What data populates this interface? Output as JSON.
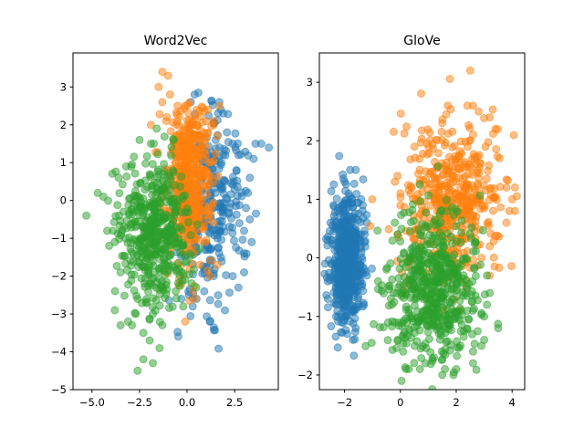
{
  "chart_data": [
    {
      "type": "scatter",
      "title": "Word2Vec",
      "xlabel": "",
      "ylabel": "",
      "xlim": [
        -6.0,
        4.8
      ],
      "ylim": [
        -5.0,
        3.9
      ],
      "xticks": [
        -5.0,
        -2.5,
        0.0,
        2.5
      ],
      "xtick_labels": [
        "−5.0",
        "−2.5",
        "0.0",
        "2.5"
      ],
      "yticks": [
        -5,
        -4,
        -3,
        -2,
        -1,
        0,
        1,
        2,
        3
      ],
      "ytick_labels": [
        "−5",
        "−4",
        "−3",
        "−2",
        "−1",
        "0",
        "1",
        "2",
        "3"
      ],
      "grid": false,
      "legend": "none",
      "series": [
        {
          "color": "#1f77b4",
          "points": [
            [
              4.3,
              1.4
            ],
            [
              3.9,
              1.5
            ],
            [
              3.6,
              1.5
            ],
            [
              3.5,
              1.1
            ],
            [
              3.3,
              0.6
            ],
            [
              3.2,
              0.2
            ],
            [
              3.1,
              -0.2
            ],
            [
              3.3,
              -0.5
            ],
            [
              3.0,
              -0.8
            ],
            [
              3.4,
              -1.1
            ],
            [
              3.0,
              -1.4
            ],
            [
              3.0,
              -1.9
            ],
            [
              2.7,
              -2.3
            ],
            [
              2.4,
              -2.0
            ],
            [
              2.5,
              0.3
            ],
            [
              2.6,
              0.8
            ],
            [
              2.7,
              1.2
            ],
            [
              2.4,
              1.5
            ],
            [
              2.1,
              1.8
            ],
            [
              1.9,
              2.3
            ],
            [
              1.7,
              2.6
            ],
            [
              1.2,
              -3.2
            ],
            [
              1.2,
              -1.6
            ],
            [
              1.6,
              -1.0
            ],
            [
              1.9,
              -0.4
            ],
            [
              2.0,
              0.5
            ],
            [
              1.8,
              1.0
            ],
            [
              1.5,
              1.6
            ],
            [
              0.5,
              -2.6
            ],
            [
              0.1,
              -2.5
            ],
            [
              -0.3,
              -2.6
            ],
            [
              0.9,
              -2.4
            ],
            [
              1.4,
              -2.0
            ],
            [
              0.3,
              -2.8
            ],
            [
              0.4,
              2.8
            ],
            [
              0.2,
              2.6
            ]
          ],
          "clusters": [
            {
              "center": [
                1.0,
                -0.3
              ],
              "sd": [
                0.75,
                1.15
              ],
              "count": 220
            },
            {
              "center": [
                2.1,
                0.1
              ],
              "sd": [
                0.7,
                1.0
              ],
              "count": 60
            }
          ]
        },
        {
          "color": "#ff7f0e",
          "points": [
            [
              -1.3,
              3.4
            ],
            [
              -1.0,
              3.3
            ],
            [
              -1.5,
              3.0
            ],
            [
              -0.9,
              2.8
            ],
            [
              -0.5,
              2.5
            ],
            [
              -1.3,
              2.6
            ],
            [
              -0.1,
              2.5
            ],
            [
              0.5,
              2.4
            ],
            [
              1.1,
              2.4
            ],
            [
              1.7,
              2.5
            ],
            [
              -0.4,
              2.2
            ],
            [
              -1.9,
              2.0
            ],
            [
              -1.1,
              2.1
            ],
            [
              1.4,
              2.1
            ],
            [
              1.6,
              1.7
            ],
            [
              -0.6,
              1.6
            ],
            [
              1.6,
              -1.7
            ],
            [
              1.2,
              -2.0
            ],
            [
              0.3,
              -2.4
            ],
            [
              -0.1,
              -3.2
            ],
            [
              -0.3,
              -2.2
            ],
            [
              1.0,
              1.2
            ],
            [
              -0.6,
              1.2
            ]
          ],
          "clusters": [
            {
              "center": [
                0.1,
                0.35
              ],
              "sd": [
                0.6,
                1.0
              ],
              "count": 420
            },
            {
              "center": [
                0.2,
                1.5
              ],
              "sd": [
                0.55,
                0.5
              ],
              "count": 80
            }
          ]
        },
        {
          "color": "#2ca02c",
          "points": [
            [
              -5.3,
              -0.4
            ],
            [
              -4.7,
              0.2
            ],
            [
              -4.4,
              0.1
            ],
            [
              -4.2,
              -0.8
            ],
            [
              -3.9,
              -0.8
            ],
            [
              -4.1,
              -1.2
            ],
            [
              -3.8,
              -1.1
            ],
            [
              -3.5,
              -1.9
            ],
            [
              -3.8,
              -2.9
            ],
            [
              -3.5,
              -3.3
            ],
            [
              -3.1,
              -3.2
            ],
            [
              -2.9,
              -3.3
            ],
            [
              -2.6,
              -2.6
            ],
            [
              -2.3,
              -3.5
            ],
            [
              -1.8,
              -3.0
            ],
            [
              -1.3,
              -3.3
            ],
            [
              -2.3,
              -4.2
            ],
            [
              -2.6,
              -4.5
            ],
            [
              -1.8,
              -4.3
            ],
            [
              -0.6,
              -2.4
            ],
            [
              -0.3,
              -1.9
            ],
            [
              -0.2,
              -2.8
            ],
            [
              -1.9,
              1.5
            ],
            [
              -2.5,
              1.6
            ],
            [
              -1.6,
              1.9
            ],
            [
              -0.7,
              1.6
            ],
            [
              -3.2,
              0.9
            ],
            [
              -3.6,
              0.6
            ]
          ],
          "clusters": [
            {
              "center": [
                -1.7,
                -0.85
              ],
              "sd": [
                0.9,
                0.95
              ],
              "count": 480
            }
          ]
        }
      ]
    },
    {
      "type": "scatter",
      "title": "GloVe",
      "xlabel": "",
      "ylabel": "",
      "xlim": [
        -2.9,
        4.45
      ],
      "ylim": [
        -2.25,
        3.5
      ],
      "xticks": [
        -2,
        0,
        2,
        4
      ],
      "xtick_labels": [
        "−2",
        "0",
        "2",
        "4"
      ],
      "yticks": [
        -2,
        -1,
        0,
        1,
        2,
        3
      ],
      "ytick_labels": [
        "−2",
        "−1",
        "0",
        "1",
        "2",
        "3"
      ],
      "grid": false,
      "legend": "none",
      "series": [
        {
          "color": "#1f77b4",
          "points": [
            [
              -1.8,
              1.5
            ],
            [
              -1.6,
              1.5
            ],
            [
              -2.0,
              1.3
            ],
            [
              -1.4,
              1.0
            ],
            [
              -2.4,
              0.9
            ],
            [
              -2.5,
              0.6
            ],
            [
              -2.6,
              0.3
            ],
            [
              -2.7,
              -0.1
            ],
            [
              -2.6,
              -0.4
            ],
            [
              -2.6,
              -0.7
            ],
            [
              -1.2,
              0.6
            ],
            [
              -1.2,
              -0.3
            ],
            [
              -1.3,
              -0.8
            ],
            [
              -2.3,
              -1.0
            ],
            [
              -1.6,
              -1.2
            ],
            [
              -1.9,
              -1.3
            ],
            [
              -2.1,
              -1.1
            ],
            [
              -1.7,
              -1.4
            ]
          ],
          "clusters": [
            {
              "center": [
                -1.9,
                0.0
              ],
              "sd": [
                0.28,
                0.55
              ],
              "count": 560
            }
          ]
        },
        {
          "color": "#ff7f0e",
          "points": [
            [
              2.5,
              3.2
            ],
            [
              2.4,
              2.6
            ],
            [
              2.6,
              2.6
            ],
            [
              1.7,
              2.6
            ],
            [
              2.8,
              2.5
            ],
            [
              1.5,
              2.3
            ],
            [
              3.2,
              2.4
            ],
            [
              3.4,
              2.2
            ],
            [
              0.5,
              1.9
            ],
            [
              -0.1,
              1.4
            ],
            [
              -0.2,
              1.3
            ],
            [
              0.0,
              1.1
            ],
            [
              3.8,
              1.2
            ],
            [
              4.0,
              1.0
            ],
            [
              4.1,
              0.8
            ],
            [
              3.9,
              0.8
            ],
            [
              3.8,
              0.6
            ],
            [
              3.2,
              0.2
            ],
            [
              2.9,
              0.0
            ],
            [
              3.2,
              -0.3
            ],
            [
              -0.1,
              0.4
            ],
            [
              0.0,
              0.9
            ]
          ],
          "clusters": [
            {
              "center": [
                1.85,
                0.95
              ],
              "sd": [
                0.85,
                0.65
              ],
              "count": 460
            }
          ]
        },
        {
          "color": "#2ca02c",
          "points": [
            [
              -0.2,
              0.6
            ],
            [
              -0.1,
              0.4
            ],
            [
              -0.5,
              -0.2
            ],
            [
              -0.8,
              -0.4
            ],
            [
              -0.3,
              -0.8
            ],
            [
              -0.2,
              -1.1
            ],
            [
              -0.1,
              -1.4
            ],
            [
              0.1,
              -1.6
            ],
            [
              0.2,
              -1.9
            ],
            [
              0.3,
              -1.9
            ],
            [
              0.7,
              -1.9
            ],
            [
              1.5,
              -2.0
            ],
            [
              1.9,
              -2.0
            ],
            [
              2.0,
              -1.9
            ],
            [
              2.6,
              -1.8
            ],
            [
              2.9,
              -1.5
            ],
            [
              3.0,
              -1.4
            ],
            [
              3.5,
              -1.2
            ],
            [
              3.0,
              -1.0
            ],
            [
              3.1,
              -0.8
            ],
            [
              3.2,
              -0.6
            ],
            [
              3.1,
              -0.3
            ],
            [
              2.6,
              -1.6
            ],
            [
              1.2,
              -1.7
            ],
            [
              0.9,
              -1.8
            ]
          ],
          "clusters": [
            {
              "center": [
                1.15,
                -0.55
              ],
              "sd": [
                0.8,
                0.62
              ],
              "count": 560
            }
          ]
        }
      ]
    }
  ]
}
